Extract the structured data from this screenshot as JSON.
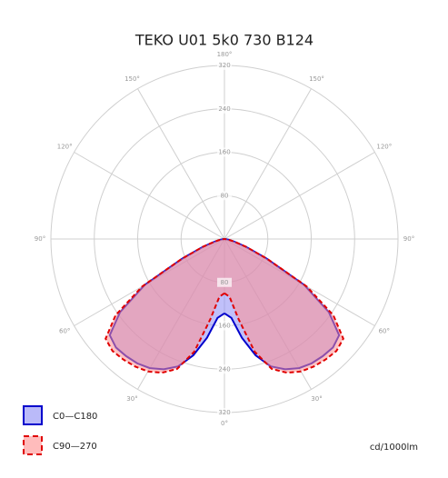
{
  "chart_data": {
    "type": "polar",
    "title": "TEKO U01 5k0 730 B124",
    "unit_label": "cd/1000lm",
    "angles": [
      0,
      5,
      10,
      15,
      20,
      25,
      30,
      35,
      40,
      45,
      50,
      55,
      60,
      65,
      70,
      75,
      80,
      85,
      90
    ],
    "series": [
      {
        "name": "C0—C180",
        "color": "#0000cc",
        "fill": "#8c8cf5",
        "dashed": false,
        "values": [
          137,
          146,
          185,
          222,
          250,
          265,
          275,
          280,
          282,
          283,
          276,
          235,
          170,
          85,
          42,
          18,
          8,
          3,
          0
        ]
      },
      {
        "name": "C90—270",
        "color": "#e00000",
        "fill": "#ff8f8f",
        "dashed": true,
        "values": [
          100,
          107,
          150,
          215,
          255,
          272,
          282,
          287,
          290,
          292,
          286,
          245,
          175,
          88,
          44,
          19,
          8,
          3,
          0
        ]
      }
    ],
    "rlim": [
      0,
      320
    ],
    "rticks": [
      80,
      160,
      240,
      320
    ],
    "thetaticks": [
      {
        "value": 0,
        "label": "0°"
      },
      {
        "value": 30,
        "label": "30°"
      },
      {
        "value": 60,
        "label": "60°"
      },
      {
        "value": 90,
        "label": "90°"
      },
      {
        "value": 120,
        "label": "120°"
      },
      {
        "value": 150,
        "label": "150°"
      },
      {
        "value": 180,
        "label": "180°"
      }
    ],
    "grid": true
  }
}
